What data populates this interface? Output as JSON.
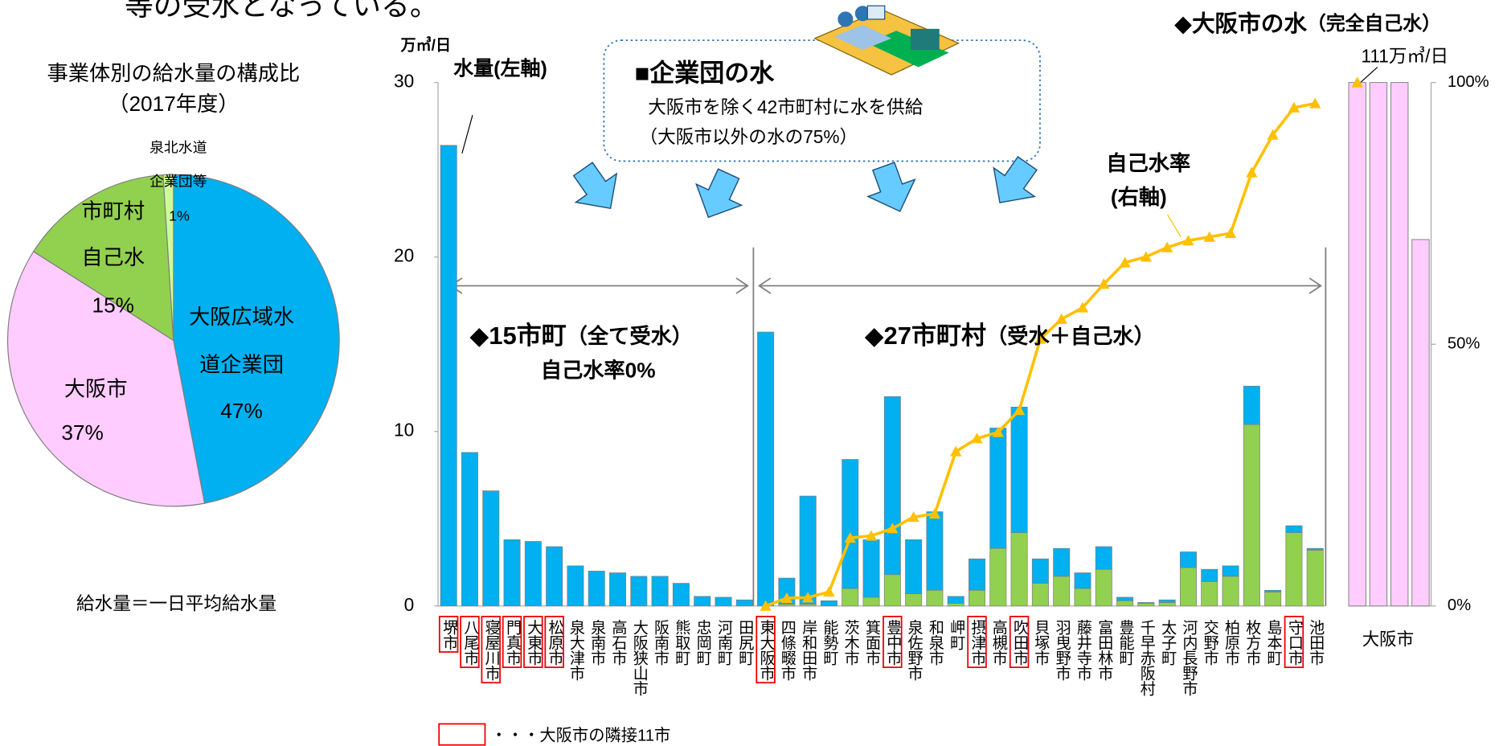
{
  "header": {
    "text": "等の受水となっている。"
  },
  "chart_data": [
    {
      "type": "pie",
      "title": "事業体別の給水量の構成比",
      "subtitle": "（2017年度）",
      "labels": [
        [
          "大阪広域水",
          "道企業団"
        ],
        [
          "大阪市"
        ],
        [
          "市町村",
          "自己水"
        ],
        [
          "泉北水道",
          "企業団等"
        ]
      ],
      "values": [
        47,
        37,
        15,
        1
      ],
      "value_labels": [
        "47%",
        "37%",
        "15%",
        "1%"
      ],
      "colors": [
        "#00b0f0",
        "#ffccff",
        "#92d050",
        "#ccff99"
      ],
      "note": "給水量＝一日平均給水量"
    },
    {
      "type": "bar",
      "stacked": true,
      "y_unit": "万㎥/日",
      "categories": [
        "堺市",
        "八尾市",
        "寝屋川市",
        "門真市",
        "大東市",
        "松原市",
        "泉大津市",
        "泉南市",
        "高石市",
        "大阪狭山市",
        "阪南市",
        "熊取町",
        "忠岡町",
        "河南町",
        "田尻町",
        "東大阪市",
        "四條畷市",
        "岸和田市",
        "能勢町",
        "茨木市",
        "箕面市",
        "豊中市",
        "泉佐野市",
        "和泉市",
        "岬町",
        "摂津市",
        "高槻市",
        "吹田市",
        "貝塚市",
        "羽曳野市",
        "藤井寺市",
        "富田林市",
        "豊能町",
        "千早赤阪村",
        "太子町",
        "河内長野市",
        "交野市",
        "柏原市",
        "枚方市",
        "島本町",
        "守口市",
        "池田市"
      ],
      "adjacent": [
        true,
        true,
        true,
        true,
        true,
        true,
        false,
        false,
        false,
        false,
        false,
        false,
        false,
        false,
        false,
        true,
        false,
        false,
        false,
        false,
        false,
        true,
        false,
        false,
        false,
        true,
        false,
        true,
        false,
        false,
        false,
        false,
        false,
        false,
        false,
        false,
        false,
        false,
        false,
        false,
        true,
        false
      ],
      "series": [
        {
          "color": "#92d050",
          "values": [
            0,
            0,
            0,
            0,
            0,
            0,
            0,
            0,
            0,
            0,
            0,
            0,
            0,
            0,
            0,
            0,
            0.1,
            0.1,
            0,
            1.0,
            0.5,
            1.8,
            0.7,
            0.9,
            0.15,
            0.9,
            3.3,
            4.2,
            1.3,
            1.7,
            1.0,
            2.1,
            0.3,
            0.15,
            0.2,
            2.2,
            1.4,
            1.7,
            10.4,
            0.8,
            4.2,
            3.2
          ]
        },
        {
          "color": "#00b0f0",
          "values": [
            26.4,
            8.8,
            6.6,
            3.8,
            3.7,
            3.4,
            2.3,
            2.0,
            1.9,
            1.7,
            1.7,
            1.3,
            0.55,
            0.5,
            0.35,
            15.7,
            1.5,
            6.2,
            0.3,
            7.4,
            3.3,
            10.2,
            3.1,
            4.5,
            0.4,
            1.8,
            6.9,
            7.2,
            1.4,
            1.6,
            0.9,
            1.3,
            0.2,
            0.05,
            0.15,
            0.9,
            0.7,
            0.6,
            2.2,
            0.1,
            0.4,
            0.1
          ]
        },
        {
          "type": "line",
          "axis": "y2",
          "color": "#ffc000",
          "values": [
            null,
            null,
            null,
            null,
            null,
            null,
            null,
            null,
            null,
            null,
            null,
            null,
            null,
            null,
            null,
            0,
            1.5,
            1.6,
            2.7,
            13,
            13.4,
            14.8,
            17,
            17.6,
            29.5,
            32,
            33.2,
            37.4,
            51,
            54.8,
            57,
            61.5,
            65.6,
            66.7,
            68.5,
            69.8,
            70.5,
            71.2,
            82.8,
            90,
            95.2,
            96
          ]
        }
      ],
      "ylim": [
        0,
        30
      ],
      "yticks": [
        0,
        10,
        20,
        30
      ],
      "y2lim": [
        0,
        100
      ],
      "y2ticks": [
        {
          "value": 0,
          "label": "0%"
        },
        {
          "value": 50,
          "label": "50%"
        },
        {
          "value": 100,
          "label": "100%"
        }
      ],
      "annotations": {
        "left_axis": "水量(左軸)",
        "callout_title": "■企業団の水",
        "callout_lines": [
          "大阪市を除く42市町村に水を供給",
          "（大阪市以外の水の75%）"
        ],
        "rate_label": [
          "自己水率",
          "(右軸)"
        ],
        "group1": [
          "◆15市町",
          "（全て受水）"
        ],
        "group1_note": "自己水率0%",
        "group2": [
          "◆27市町村",
          "（受水＋自己水）"
        ],
        "legend": "・・・大阪市の隣接11市"
      }
    },
    {
      "type": "bar",
      "label": "大阪市",
      "axis": "y2",
      "values": [
        100,
        100,
        100,
        70
      ],
      "color": "#ffccff",
      "rate": 100,
      "title": "◆大阪市の水",
      "subtitle": "（完全自己水）",
      "total_label": "111万㎥/日"
    }
  ]
}
